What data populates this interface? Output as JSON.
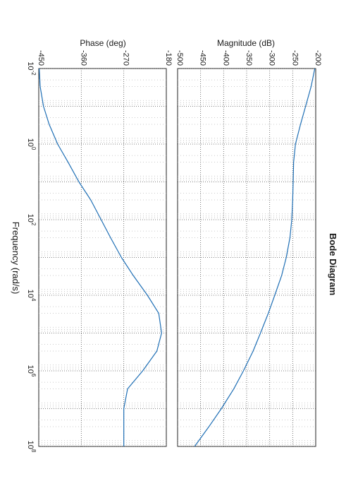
{
  "chart_data": [
    {
      "type": "line",
      "panel": "magnitude",
      "title": "Bode Diagram",
      "xlabel": "Frequency  (rad/s)",
      "ylabel": "Magnitude (dB)",
      "xscale": "log",
      "xlim": [
        0.01,
        100000000
      ],
      "ylim": [
        -500,
        -200
      ],
      "x_tick_labels": [
        "10^-2",
        "10^0",
        "10^2",
        "10^4",
        "10^6",
        "10^8"
      ],
      "y_ticks": [
        -500,
        -450,
        -400,
        -350,
        -300,
        -250,
        -200
      ],
      "y_tick_labels": [
        "-500",
        "-450",
        "-400",
        "-350",
        "-300",
        "-250",
        "-200"
      ],
      "grid": true,
      "series": [
        {
          "color": "#1f6fb5",
          "x": [
            0.01,
            0.03,
            0.1,
            0.3,
            1,
            3,
            10,
            30,
            100,
            300,
            1000,
            3000,
            10000,
            30000,
            100000,
            300000,
            1000000,
            3000000,
            10000000,
            30000000,
            100000000
          ],
          "y": [
            -202,
            -210,
            -222,
            -233,
            -244,
            -248,
            -249,
            -250,
            -252,
            -256,
            -264,
            -274,
            -289,
            -303,
            -320,
            -336,
            -357,
            -378,
            -405,
            -432,
            -463
          ]
        }
      ]
    },
    {
      "type": "line",
      "panel": "phase",
      "xlabel": "Frequency  (rad/s)",
      "ylabel": "Phase (deg)",
      "xscale": "log",
      "xlim": [
        0.01,
        100000000
      ],
      "ylim": [
        -450,
        -180
      ],
      "x_tick_labels": [
        "10^-2",
        "10^0",
        "10^2",
        "10^4",
        "10^6",
        "10^8"
      ],
      "y_ticks": [
        -450,
        -360,
        -270,
        -180
      ],
      "y_tick_labels": [
        "-450",
        "-360",
        "-270",
        "-180"
      ],
      "grid": true,
      "series": [
        {
          "color": "#1f6fb5",
          "x": [
            0.01,
            0.03,
            0.1,
            0.3,
            1,
            3,
            10,
            30,
            100,
            300,
            1000,
            3000,
            10000,
            30000,
            100000,
            300000,
            1000000,
            3000000,
            10000000,
            30000000,
            100000000
          ],
          "y": [
            -449,
            -447,
            -440,
            -428,
            -410,
            -388,
            -365,
            -340,
            -318,
            -298,
            -275,
            -250,
            -220,
            -196,
            -190,
            -200,
            -230,
            -262,
            -270,
            -270,
            -270
          ]
        }
      ]
    }
  ]
}
